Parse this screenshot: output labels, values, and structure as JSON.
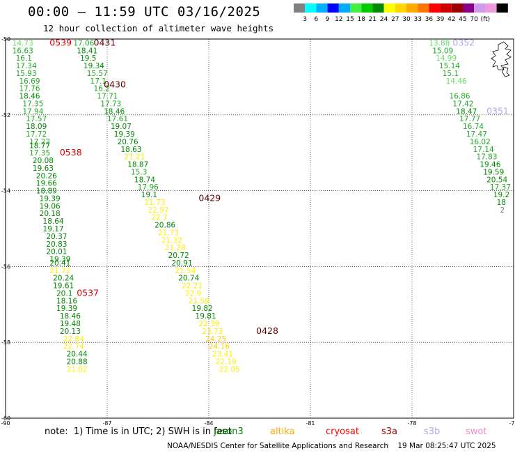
{
  "header": {
    "title": "00:00 – 11:59 UTC 03/16/2025",
    "subtitle": "12 hour collection of altimeter wave heights"
  },
  "color_legend": {
    "colors": [
      "#808080",
      "#00ffff",
      "#00b0ff",
      "#0000ff",
      "#00aaff",
      "#44ee44",
      "#00cc00",
      "#008800",
      "#ffff00",
      "#ffd700",
      "#ffaa00",
      "#ff7700",
      "#ff0000",
      "#cc0000",
      "#990000",
      "#880088",
      "#cc99ee",
      "#ee99dd",
      "#000000"
    ],
    "labels": [
      "3",
      "6",
      "9",
      "12",
      "15",
      "18",
      "21",
      "24",
      "27",
      "30",
      "33",
      "36",
      "39",
      "42",
      "45",
      "70",
      "(ft)"
    ]
  },
  "chart_data": {
    "type": "scatter",
    "title": "12 hour collection of altimeter wave heights",
    "xlim": [
      -90,
      -75
    ],
    "ylim": [
      -60,
      -50
    ],
    "x_ticks": [
      "-90",
      "-87",
      "-84",
      "-81",
      "-78",
      "-75"
    ],
    "y_ticks": [
      "-50",
      "-52",
      "-54",
      "-56",
      "-58",
      "-60"
    ],
    "grid": true,
    "units": "ft",
    "passes": [
      {
        "label": "0539",
        "satellite": "jason3",
        "lon": -88.7,
        "lat": -50.1,
        "label_color": "#dd0000"
      },
      {
        "label": "0538",
        "satellite": "jason3",
        "lon": -88.4,
        "lat": -53.0,
        "label_color": "#dd0000"
      },
      {
        "label": "0537",
        "satellite": "jason3",
        "lon": -87.9,
        "lat": -56.7,
        "label_color": "#dd0000"
      },
      {
        "label": "0431",
        "satellite": "sentinel6",
        "lon": -87.4,
        "lat": -50.1,
        "label_color": "#660000"
      },
      {
        "label": "0430",
        "satellite": "sentinel6",
        "lon": -87.1,
        "lat": -51.2,
        "label_color": "#660000"
      },
      {
        "label": "0429",
        "satellite": "sentinel6",
        "lon": -84.3,
        "lat": -54.2,
        "label_color": "#660000"
      },
      {
        "label": "0428",
        "satellite": "sentinel6",
        "lon": -82.6,
        "lat": -57.7,
        "label_color": "#660000"
      },
      {
        "label": "0352",
        "satellite": "s3b",
        "lon": -76.8,
        "lat": -50.1,
        "label_color": "#aaaaee"
      },
      {
        "label": "0351",
        "satellite": "s3b",
        "lon": -75.8,
        "lat": -51.9,
        "label_color": "#aaaaee"
      }
    ],
    "tracks": [
      {
        "name": "track1",
        "values": [
          [
            -89.8,
            -50.1,
            14.73
          ],
          [
            -89.8,
            -50.3,
            16.63
          ],
          [
            -89.7,
            -50.5,
            16.1
          ],
          [
            -89.7,
            -50.7,
            17.34
          ],
          [
            -89.7,
            -50.9,
            15.93
          ],
          [
            -89.6,
            -51.1,
            16.69
          ],
          [
            -89.6,
            -51.3,
            17.76
          ],
          [
            -89.6,
            -51.5,
            18.46
          ],
          [
            -89.5,
            -51.7,
            17.35
          ],
          [
            -89.5,
            -51.9,
            17.94
          ],
          [
            -89.4,
            -52.1,
            17.57
          ],
          [
            -89.4,
            -52.3,
            18.09
          ],
          [
            -89.4,
            -52.5,
            17.72
          ],
          [
            -89.3,
            -52.7,
            17.22
          ],
          [
            -89.3,
            -52.8,
            18.77
          ],
          [
            -89.3,
            -53.0,
            17.35
          ],
          [
            -89.2,
            -53.2,
            20.08
          ],
          [
            -89.2,
            -53.4,
            19.63
          ],
          [
            -89.1,
            -53.6,
            20.26
          ],
          [
            -89.1,
            -53.8,
            19.66
          ],
          [
            -89.1,
            -54.0,
            18.89
          ],
          [
            -89.0,
            -54.2,
            19.39
          ],
          [
            -89.0,
            -54.4,
            19.06
          ],
          [
            -89.0,
            -54.6,
            20.18
          ],
          [
            -88.9,
            -54.8,
            18.64
          ],
          [
            -88.9,
            -55.0,
            19.17
          ],
          [
            -88.8,
            -55.2,
            20.37
          ],
          [
            -88.8,
            -55.4,
            20.83
          ],
          [
            -88.8,
            -55.6,
            20.01
          ],
          [
            -88.7,
            -55.8,
            19.39
          ],
          [
            -88.7,
            -55.9,
            20.41
          ],
          [
            -88.7,
            -56.1,
            21.72
          ],
          [
            -88.6,
            -56.3,
            20.24
          ],
          [
            -88.6,
            -56.5,
            19.61
          ],
          [
            -88.5,
            -56.7,
            20.1
          ],
          [
            -88.5,
            -56.9,
            18.16
          ],
          [
            -88.5,
            -57.1,
            19.39
          ],
          [
            -88.4,
            -57.3,
            18.46
          ],
          [
            -88.4,
            -57.5,
            19.48
          ],
          [
            -88.4,
            -57.7,
            20.13
          ],
          [
            -88.3,
            -57.9,
            22.84
          ],
          [
            -88.3,
            -58.1,
            22.74
          ],
          [
            -88.2,
            -58.3,
            20.44
          ],
          [
            -88.2,
            -58.5,
            20.88
          ],
          [
            -88.2,
            -58.7,
            21.02
          ]
        ]
      },
      {
        "name": "track2",
        "values": [
          [
            -88.0,
            -50.1,
            17.06
          ],
          [
            -87.9,
            -50.3,
            18.41
          ],
          [
            -87.8,
            -50.5,
            19.5
          ],
          [
            -87.7,
            -50.7,
            19.34
          ],
          [
            -87.6,
            -50.9,
            15.57
          ],
          [
            -87.5,
            -51.1,
            17.1
          ],
          [
            -87.4,
            -51.3,
            16.2
          ],
          [
            -87.3,
            -51.5,
            17.71
          ],
          [
            -87.2,
            -51.7,
            17.73
          ],
          [
            -87.1,
            -51.9,
            18.46
          ],
          [
            -87.0,
            -52.1,
            17.61
          ],
          [
            -86.9,
            -52.3,
            19.07
          ],
          [
            -86.8,
            -52.5,
            19.39
          ],
          [
            -86.7,
            -52.7,
            20.76
          ],
          [
            -86.6,
            -52.9,
            18.63
          ],
          [
            -86.5,
            -53.1,
            21.21
          ],
          [
            -86.4,
            -53.3,
            18.87
          ],
          [
            -86.3,
            -53.5,
            15.3
          ],
          [
            -86.2,
            -53.7,
            18.74
          ],
          [
            -86.1,
            -53.9,
            17.96
          ],
          [
            -86.0,
            -54.1,
            19.1
          ],
          [
            -85.9,
            -54.3,
            21.73
          ],
          [
            -85.8,
            -54.5,
            22.97
          ],
          [
            -85.7,
            -54.7,
            22.7
          ],
          [
            -85.6,
            -54.9,
            20.86
          ],
          [
            -85.5,
            -55.1,
            21.73
          ],
          [
            -85.4,
            -55.3,
            21.32
          ],
          [
            -85.3,
            -55.5,
            21.28
          ],
          [
            -85.2,
            -55.7,
            20.72
          ],
          [
            -85.1,
            -55.9,
            20.91
          ],
          [
            -85.0,
            -56.1,
            21.54
          ],
          [
            -84.9,
            -56.3,
            20.74
          ],
          [
            -84.8,
            -56.5,
            22.21
          ],
          [
            -84.7,
            -56.7,
            22.9
          ],
          [
            -84.6,
            -56.9,
            21.59
          ],
          [
            -84.5,
            -57.1,
            19.82
          ],
          [
            -84.4,
            -57.3,
            19.81
          ],
          [
            -84.3,
            -57.5,
            22.39
          ],
          [
            -84.2,
            -57.7,
            23.73
          ],
          [
            -84.1,
            -57.9,
            24.25
          ],
          [
            -84.0,
            -58.1,
            24.16
          ],
          [
            -83.9,
            -58.3,
            23.41
          ],
          [
            -83.8,
            -58.5,
            22.19
          ],
          [
            -83.7,
            -58.7,
            22.05
          ]
        ]
      },
      {
        "name": "track3",
        "values": [
          [
            -77.5,
            -50.1,
            13.88
          ],
          [
            -77.4,
            -50.3,
            15.09
          ],
          [
            -77.3,
            -50.5,
            14.99
          ],
          [
            -77.2,
            -50.7,
            15.14
          ],
          [
            -77.1,
            -50.9,
            15.1
          ],
          [
            -77.0,
            -51.1,
            14.46
          ],
          [
            -76.9,
            -51.5,
            16.86
          ],
          [
            -76.8,
            -51.7,
            17.42
          ],
          [
            -76.7,
            -51.9,
            18.47
          ],
          [
            -76.6,
            -52.1,
            17.77
          ],
          [
            -76.5,
            -52.3,
            16.74
          ],
          [
            -76.4,
            -52.5,
            17.47
          ],
          [
            -76.3,
            -52.7,
            16.02
          ],
          [
            -76.2,
            -52.9,
            17.14
          ],
          [
            -76.1,
            -53.1,
            17.83
          ],
          [
            -76.0,
            -53.3,
            19.46
          ],
          [
            -75.9,
            -53.5,
            19.59
          ],
          [
            -75.8,
            -53.7,
            20.54
          ],
          [
            -75.7,
            -53.9,
            17.37
          ],
          [
            -75.6,
            -54.1,
            19.2
          ],
          [
            -75.5,
            -54.3,
            18
          ],
          [
            -75.4,
            -54.5,
            2
          ]
        ]
      }
    ]
  },
  "note": {
    "text": "note:  1) Time is in UTC; 2) SWH is in feet"
  },
  "satellites": [
    {
      "name": "jason3",
      "color": "#008800"
    },
    {
      "name": "altika",
      "color": "#ffaa00"
    },
    {
      "name": "cryosat",
      "color": "#ff0000"
    },
    {
      "name": "s3a",
      "color": "#990000"
    },
    {
      "name": "s3b",
      "color": "#aaaaee"
    },
    {
      "name": "swot",
      "color": "#ee88cc"
    }
  ],
  "footer": {
    "credit": "NOAA/NESDIS Center for Satellite Applications and Research",
    "timestamp": "19 Mar 08:25:47 UTC 2025"
  }
}
